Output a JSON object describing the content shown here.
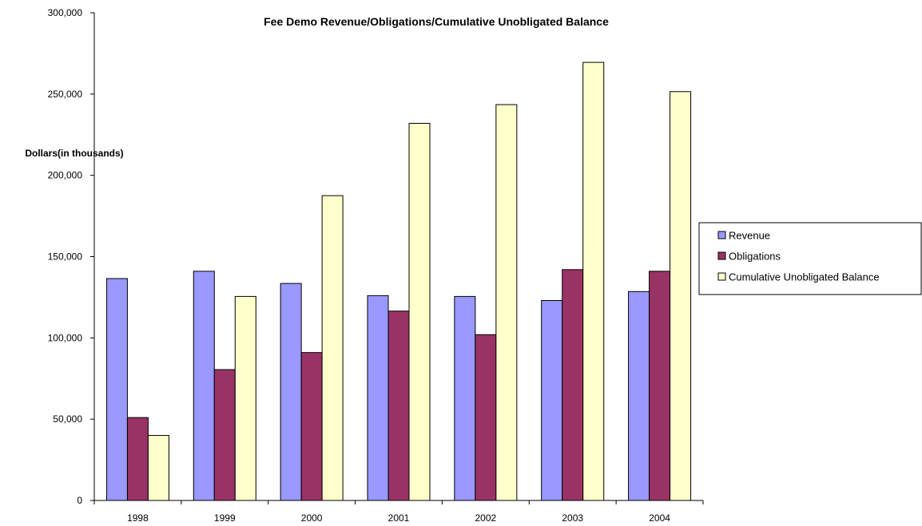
{
  "chart_data": {
    "type": "bar",
    "title": "Fee Demo Revenue/Obligations/Cumulative Unobligated Balance",
    "ylabel": "Dollars(in thousands)",
    "xlabel": "",
    "categories": [
      "1998",
      "1999",
      "2000",
      "2001",
      "2002",
      "2003",
      "2004"
    ],
    "series": [
      {
        "name": "Revenue",
        "color": "#9999ff",
        "values": [
          136500,
          141000,
          133500,
          126000,
          125500,
          123000,
          128500
        ]
      },
      {
        "name": "Obligations",
        "color": "#993366",
        "values": [
          51000,
          80500,
          91000,
          116500,
          102000,
          142000,
          141000
        ]
      },
      {
        "name": "Cumulative Unobligated Balance",
        "color": "#ffffcc",
        "values": [
          40000,
          125500,
          187500,
          232000,
          243500,
          269500,
          251500
        ]
      }
    ],
    "ylim": [
      0,
      300000
    ],
    "yticks": [
      0,
      50000,
      100000,
      150000,
      200000,
      250000,
      300000
    ],
    "ytick_labels": [
      "0",
      "50,000",
      "100,000",
      "150,000",
      "200,000",
      "250,000",
      "300,000"
    ],
    "grid": false,
    "legend_position": "right"
  }
}
